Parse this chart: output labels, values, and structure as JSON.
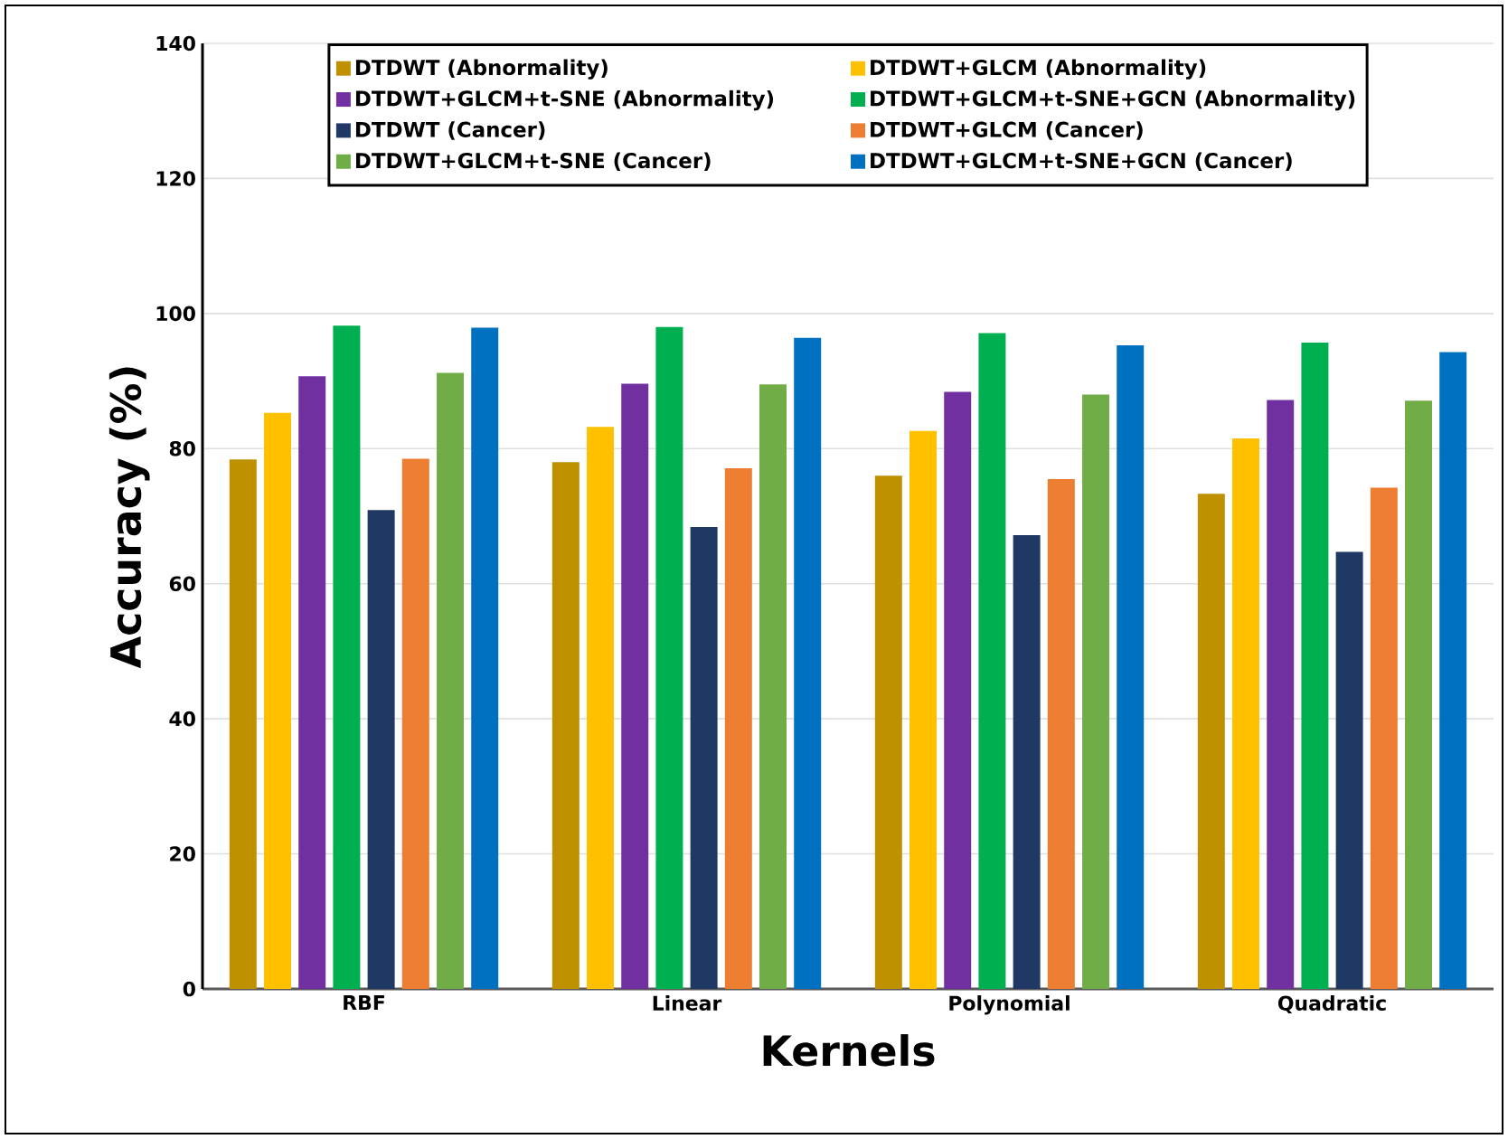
{
  "chart_data": {
    "type": "bar",
    "xlabel": "Kernels",
    "ylabel": "Accuracy (%)",
    "categories": [
      "RBF",
      "Linear",
      "Polynomial",
      "Quadratic"
    ],
    "series": [
      {
        "name": "DTDWT (Abnormality)",
        "color": "#bf9000",
        "values": [
          78.4,
          78.0,
          76.0,
          73.3
        ]
      },
      {
        "name": "DTDWT+GLCM (Abnormality)",
        "color": "#ffc000",
        "values": [
          85.3,
          83.2,
          82.6,
          81.5
        ]
      },
      {
        "name": "DTDWT+GLCM+t-SNE (Abnormality)",
        "color": "#7030a0",
        "values": [
          90.7,
          89.6,
          88.4,
          87.2
        ]
      },
      {
        "name": "DTDWT+GLCM+t-SNE+GCN (Abnormality)",
        "color": "#00b050",
        "values": [
          98.2,
          98.0,
          97.1,
          95.7
        ]
      },
      {
        "name": "DTDWT (Cancer)",
        "color": "#1f3864",
        "values": [
          70.9,
          68.4,
          67.2,
          64.7
        ]
      },
      {
        "name": "DTDWT+GLCM (Cancer)",
        "color": "#ed7d31",
        "values": [
          78.5,
          77.1,
          75.5,
          74.2
        ]
      },
      {
        "name": "DTDWT+GLCM+t-SNE (Cancer)",
        "color": "#70ad47",
        "values": [
          91.2,
          89.5,
          88.0,
          87.1
        ]
      },
      {
        "name": "DTDWT+GLCM+t-SNE+GCN (Cancer)",
        "color": "#0070c0",
        "values": [
          97.9,
          96.4,
          95.3,
          94.3
        ]
      }
    ],
    "ylim": [
      0,
      140
    ],
    "yticks": [
      0,
      20,
      40,
      60,
      80,
      100,
      120,
      140
    ],
    "grid": "y",
    "legend": "top"
  }
}
